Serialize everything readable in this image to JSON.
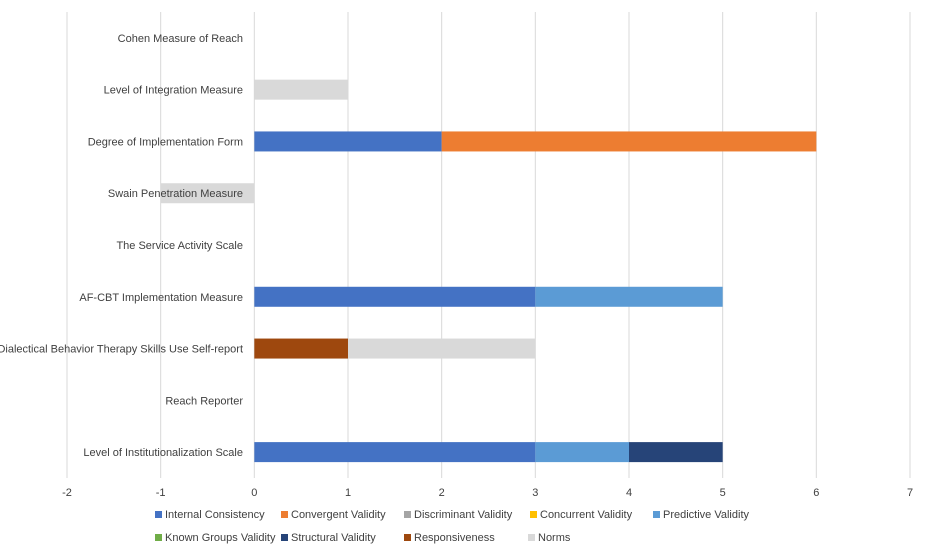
{
  "chart_data": {
    "type": "bar",
    "orientation": "horizontal",
    "stacked": true,
    "title": "",
    "xlabel": "",
    "ylabel": "",
    "xlim": [
      -2,
      7
    ],
    "x_ticks": [
      "-2",
      "-1",
      "0",
      "1",
      "2",
      "3",
      "4",
      "5",
      "6",
      "7"
    ],
    "grid": "vertical",
    "legend_position": "bottom",
    "categories": [
      "Cohen Measure of Reach",
      "Level of Integration Measure",
      "Degree of Implementation Form",
      "Swain Penetration Measure",
      "The Service Activity Scale",
      "AF-CBT Implementation Measure",
      "Dialectical Behavior Therapy Skills Use Self-report",
      "Reach Reporter",
      "Level of Institutionalization Scale"
    ],
    "series": [
      {
        "name": "Internal Consistency",
        "color": "#4472C4",
        "values": [
          0,
          0,
          2,
          0,
          0,
          3,
          0,
          0,
          3
        ]
      },
      {
        "name": "Convergent Validity",
        "color": "#ED7D31",
        "values": [
          0,
          0,
          4,
          0,
          0,
          0,
          0,
          0,
          0
        ]
      },
      {
        "name": "Discriminant Validity",
        "color": "#A5A5A5",
        "values": [
          0,
          0,
          0,
          0,
          0,
          0,
          0,
          0,
          0
        ]
      },
      {
        "name": "Concurrent Validity",
        "color": "#FFC000",
        "values": [
          0,
          0,
          0,
          0,
          0,
          0,
          0,
          0,
          0
        ]
      },
      {
        "name": "Predictive Validity",
        "color": "#5B9BD5",
        "values": [
          0,
          0,
          0,
          0,
          0,
          2,
          0,
          0,
          1
        ]
      },
      {
        "name": "Known Groups Validity",
        "color": "#70AD47",
        "values": [
          0,
          0,
          0,
          0,
          0,
          0,
          0,
          0,
          0
        ]
      },
      {
        "name": "Structural Validity",
        "color": "#264478",
        "values": [
          0,
          0,
          0,
          0,
          0,
          0,
          0,
          0,
          1
        ]
      },
      {
        "name": "Responsiveness",
        "color": "#9E480E",
        "values": [
          0,
          0,
          0,
          0,
          0,
          0,
          1,
          0,
          0
        ]
      },
      {
        "name": "Norms",
        "color": "#D9D9D9",
        "values": [
          0,
          1,
          0,
          -1,
          0,
          0,
          2,
          0,
          0
        ]
      }
    ]
  }
}
